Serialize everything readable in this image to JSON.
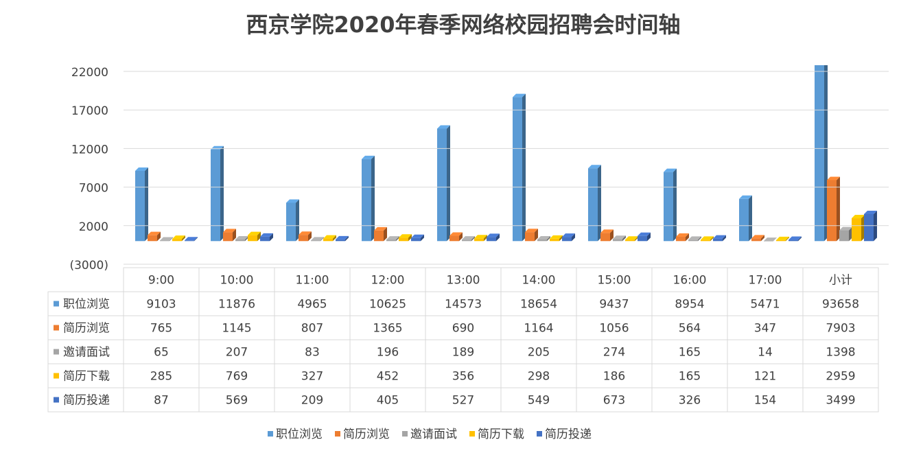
{
  "chart_data": {
    "type": "bar3d",
    "title": "西京学院2020年春季网络校园招聘会时间轴",
    "categories": [
      "9:00",
      "10:00",
      "11:00",
      "12:00",
      "13:00",
      "14:00",
      "15:00",
      "16:00",
      "17:00",
      "小计"
    ],
    "series": [
      {
        "name": "职位浏览",
        "color": "#5b9bd5",
        "values": [
          9103,
          11876,
          4965,
          10625,
          14573,
          18654,
          9437,
          8954,
          5471,
          93658
        ]
      },
      {
        "name": "简历浏览",
        "color": "#ed7d31",
        "values": [
          765,
          1145,
          807,
          1365,
          690,
          1164,
          1056,
          564,
          347,
          7903
        ]
      },
      {
        "name": "邀请面试",
        "color": "#a5a5a5",
        "values": [
          65,
          207,
          83,
          196,
          189,
          205,
          274,
          165,
          14,
          1398
        ]
      },
      {
        "name": "简历下载",
        "color": "#ffc000",
        "values": [
          285,
          769,
          327,
          452,
          356,
          298,
          186,
          165,
          121,
          2959
        ]
      },
      {
        "name": "简历投递",
        "color": "#4472c4",
        "values": [
          87,
          569,
          209,
          405,
          527,
          549,
          673,
          326,
          154,
          3499
        ]
      }
    ],
    "ylim": [
      -3000,
      22000
    ],
    "yticks": [
      {
        "value": -3000,
        "label": "(3000)"
      },
      2000,
      7000,
      12000,
      17000,
      22000
    ],
    "grid": true,
    "legend": "bottom"
  }
}
